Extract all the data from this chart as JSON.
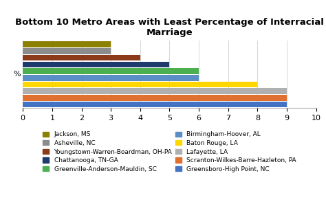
{
  "title": "Bottom 10 Metro Areas with Least Percentage of Interracial\nMarriage",
  "ylabel": "%",
  "xlim": [
    0,
    10
  ],
  "xticks": [
    0,
    1,
    2,
    3,
    4,
    5,
    6,
    7,
    8,
    9,
    10
  ],
  "bars": [
    {
      "label": "Jackson, MS",
      "value": 3.0,
      "color": "#8B8000"
    },
    {
      "label": "Asheville, NC",
      "value": 3.0,
      "color": "#8C8C8C"
    },
    {
      "label": "Youngstown-Warren-Boardman, OH-PA",
      "value": 4.0,
      "color": "#8B3A1A"
    },
    {
      "label": "Chattanooga, TN-GA",
      "value": 5.0,
      "color": "#1F3B6E"
    },
    {
      "label": "Greenville-Anderson-Mauldin, SC",
      "value": 6.0,
      "color": "#4CAF50"
    },
    {
      "label": "Birmingham-Hoover, AL",
      "value": 6.0,
      "color": "#5B8EC4"
    },
    {
      "label": "Baton Rouge, LA",
      "value": 8.0,
      "color": "#FFD700"
    },
    {
      "label": "Lafayette, LA",
      "value": 9.0,
      "color": "#B0B0B0"
    },
    {
      "label": "Scranton-Wilkes-Barre-Hazleton, PA",
      "value": 9.0,
      "color": "#E07030"
    },
    {
      "label": "Greensboro-High Point, NC",
      "value": 9.0,
      "color": "#4472C4"
    }
  ],
  "background_color": "#ffffff",
  "title_fontsize": 9.5,
  "legend_fontsize": 6.5,
  "axis_fontsize": 8
}
